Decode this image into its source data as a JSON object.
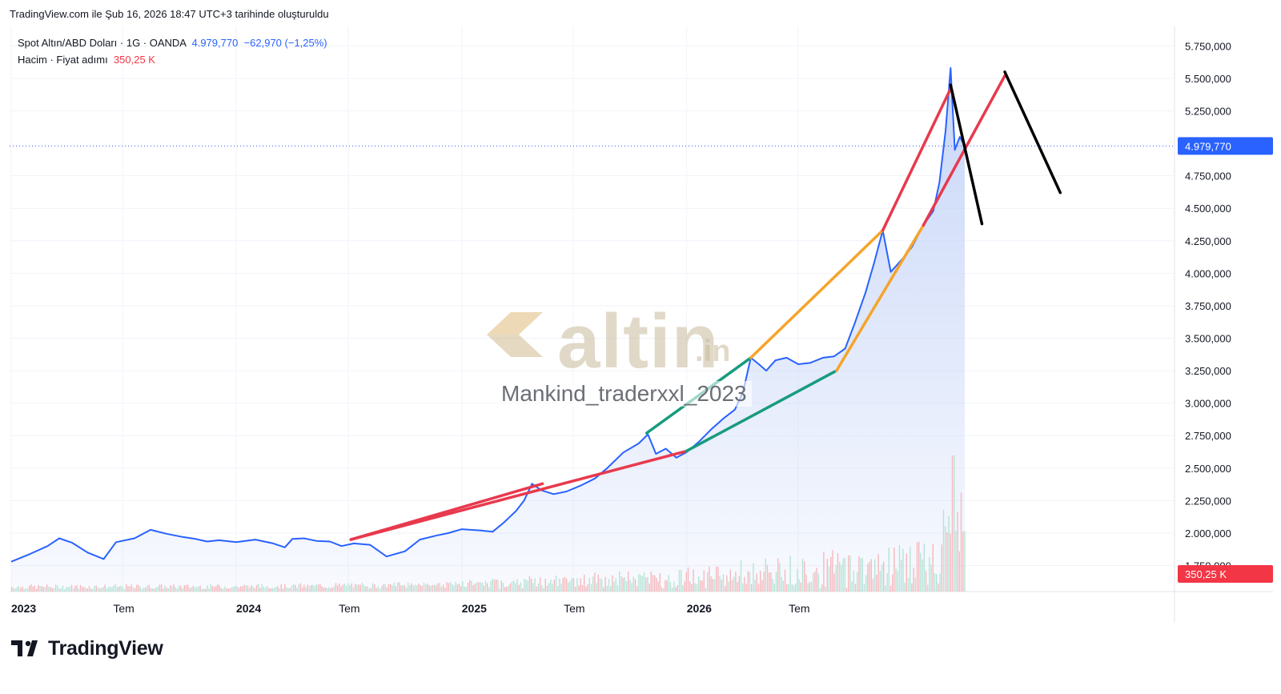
{
  "caption": "TradingView.com ile Şub 16, 2026 18:47 UTC+3 tarihinde oluşturuldu",
  "legend": {
    "symbol": "Spot Altın/ABD Doları · 1G · OANDA",
    "price": "4.979,770",
    "change": "−62,970 (−1,25%)",
    "volume_label": "Hacim · Fiyat adımı",
    "volume_value": "350,25 K"
  },
  "watermark": {
    "brand": "altin",
    "suffix": ".in",
    "author": "Mankind_traderxxl_2023"
  },
  "brand": {
    "name": "TradingView"
  },
  "colors": {
    "price_line": "#2962ff",
    "area_top": "#c5d4f7",
    "red_line": "#e8394d",
    "green_line": "#179b7e",
    "orange_line": "#f5a42c",
    "black_line": "#000000",
    "vol_up": "#b7e3d6",
    "vol_down": "#f6b9bd",
    "last_price_tag": "#2962ff",
    "volume_tag": "#f23645"
  },
  "chart_data": {
    "type": "line",
    "title": "Spot Altın/ABD Doları",
    "y_axis": {
      "ticks": [
        "5.750,000",
        "5.500,000",
        "5.250,000",
        "4.750,000",
        "4.500,000",
        "4.250,000",
        "4.000,000",
        "3.750,000",
        "3.500,000",
        "3.250,000",
        "3.000,000",
        "2.750,000",
        "2.500,000",
        "2.250,000",
        "2.000,000",
        "1.750,000"
      ],
      "tick_values": [
        5750,
        5500,
        5250,
        4750,
        4500,
        4250,
        4000,
        3750,
        3500,
        3250,
        3000,
        2750,
        2500,
        2250,
        2000,
        1750
      ],
      "last_price_label": "4.979,770",
      "last_price": 4979.77,
      "volume_label": "350,25 K"
    },
    "x_axis": {
      "ticks": [
        {
          "label": "2023",
          "bold": true,
          "date": "2023-01-01"
        },
        {
          "label": "Tem",
          "bold": false,
          "date": "2023-07-01"
        },
        {
          "label": "2024",
          "bold": true,
          "date": "2024-01-01"
        },
        {
          "label": "Tem",
          "bold": false,
          "date": "2024-07-01"
        },
        {
          "label": "2025",
          "bold": true,
          "date": "2025-01-01"
        },
        {
          "label": "Tem",
          "bold": false,
          "date": "2025-07-01"
        },
        {
          "label": "2026",
          "bold": true,
          "date": "2026-01-01"
        },
        {
          "label": "Tem",
          "bold": false,
          "date": "2026-07-01"
        }
      ]
    },
    "series": [
      {
        "name": "Spot Altın/ABD Doları",
        "points": [
          [
            "2023-01-01",
            1780
          ],
          [
            "2023-02-01",
            1840
          ],
          [
            "2023-03-01",
            1900
          ],
          [
            "2023-03-20",
            1960
          ],
          [
            "2023-04-10",
            1925
          ],
          [
            "2023-05-05",
            1850
          ],
          [
            "2023-05-31",
            1800
          ],
          [
            "2023-06-20",
            1930
          ],
          [
            "2023-07-20",
            1960
          ],
          [
            "2023-08-15",
            2025
          ],
          [
            "2023-09-10",
            1995
          ],
          [
            "2023-10-06",
            1970
          ],
          [
            "2023-10-27",
            1955
          ],
          [
            "2023-11-15",
            1935
          ],
          [
            "2023-12-04",
            1945
          ],
          [
            "2024-01-01",
            1930
          ],
          [
            "2024-02-01",
            1950
          ],
          [
            "2024-03-01",
            1920
          ],
          [
            "2024-03-20",
            1890
          ],
          [
            "2024-04-01",
            1955
          ],
          [
            "2024-04-20",
            1960
          ],
          [
            "2024-05-10",
            1940
          ],
          [
            "2024-06-01",
            1935
          ],
          [
            "2024-06-20",
            1900
          ],
          [
            "2024-07-10",
            1920
          ],
          [
            "2024-08-05",
            1910
          ],
          [
            "2024-09-01",
            1820
          ],
          [
            "2024-10-01",
            1860
          ],
          [
            "2024-10-25",
            1950
          ],
          [
            "2024-11-20",
            1980
          ],
          [
            "2024-12-10",
            2000
          ],
          [
            "2025-01-01",
            2030
          ],
          [
            "2025-02-01",
            2020
          ],
          [
            "2025-02-20",
            2010
          ],
          [
            "2025-03-10",
            2080
          ],
          [
            "2025-03-30",
            2170
          ],
          [
            "2025-04-12",
            2250
          ],
          [
            "2025-04-25",
            2380
          ],
          [
            "2025-05-10",
            2330
          ],
          [
            "2025-05-30",
            2300
          ],
          [
            "2025-06-20",
            2320
          ],
          [
            "2025-07-15",
            2370
          ],
          [
            "2025-08-05",
            2420
          ],
          [
            "2025-08-25",
            2500
          ],
          [
            "2025-09-20",
            2620
          ],
          [
            "2025-10-15",
            2690
          ],
          [
            "2025-10-30",
            2760
          ],
          [
            "2025-11-12",
            2610
          ],
          [
            "2025-11-28",
            2650
          ],
          [
            "2025-12-15",
            2580
          ],
          [
            "2025-12-31",
            2620
          ],
          [
            "2026-01-20",
            2700
          ],
          [
            "2026-02-10",
            2800
          ],
          [
            "2026-03-01",
            2880
          ],
          [
            "2026-03-20",
            2950
          ],
          [
            "2026-04-02",
            3080
          ],
          [
            "2026-04-15",
            3350
          ],
          [
            "2026-04-28",
            3300
          ],
          [
            "2026-05-10",
            3250
          ],
          [
            "2026-05-25",
            3330
          ],
          [
            "2026-06-12",
            3350
          ],
          [
            "2026-07-01",
            3300
          ],
          [
            "2026-07-20",
            3310
          ],
          [
            "2026-08-10",
            3350
          ],
          [
            "2026-08-28",
            3360
          ],
          [
            "2026-09-15",
            3420
          ],
          [
            "2026-10-01",
            3620
          ],
          [
            "2026-10-18",
            3850
          ],
          [
            "2026-11-01",
            4080
          ],
          [
            "2026-11-15",
            4330
          ],
          [
            "2026-11-28",
            4010
          ],
          [
            "2026-12-15",
            4100
          ],
          [
            "2027-01-01",
            4200
          ],
          [
            "2027-01-20",
            4370
          ],
          [
            "2027-02-05",
            4480
          ],
          [
            "2027-02-15",
            4700
          ],
          [
            "2027-02-25",
            5100
          ],
          [
            "2027-03-05",
            5580
          ],
          [
            "2027-03-12",
            4950
          ],
          [
            "2027-03-20",
            5050
          ],
          [
            "2027-03-28",
            4980
          ]
        ]
      }
    ],
    "ylim": [
      1550,
      5900
    ],
    "grid": true,
    "legend_position": "top-left"
  },
  "drawings": [
    {
      "color": "red_line",
      "from": [
        "2024-07-05",
        1950
      ],
      "to": [
        "2025-05-12",
        2380
      ]
    },
    {
      "color": "red_line",
      "from": [
        "2024-07-05",
        1950
      ],
      "to": [
        "2025-12-31",
        2630
      ]
    },
    {
      "color": "green_line",
      "from": [
        "2025-10-28",
        2770
      ],
      "to": [
        "2026-04-15",
        3350
      ]
    },
    {
      "color": "green_line",
      "from": [
        "2025-12-31",
        2630
      ],
      "to": [
        "2026-09-01",
        3250
      ]
    },
    {
      "color": "orange_line",
      "from": [
        "2026-04-15",
        3350
      ],
      "to": [
        "2026-11-15",
        4330
      ]
    },
    {
      "color": "orange_line",
      "from": [
        "2026-09-01",
        3250
      ],
      "to": [
        "2027-01-20",
        4370
      ]
    },
    {
      "color": "red_line",
      "from": [
        "2026-11-15",
        4330
      ],
      "to": [
        "2027-03-05",
        5420
      ]
    },
    {
      "color": "red_line",
      "from": [
        "2027-01-20",
        4370
      ],
      "to": [
        "2027-06-01",
        5520
      ]
    },
    {
      "color": "black_line",
      "from": [
        "2027-03-05",
        5450
      ],
      "to": [
        "2027-04-25",
        4380
      ]
    },
    {
      "color": "black_line",
      "from": [
        "2027-06-01",
        5550
      ],
      "to": [
        "2027-08-30",
        4620
      ]
    }
  ]
}
